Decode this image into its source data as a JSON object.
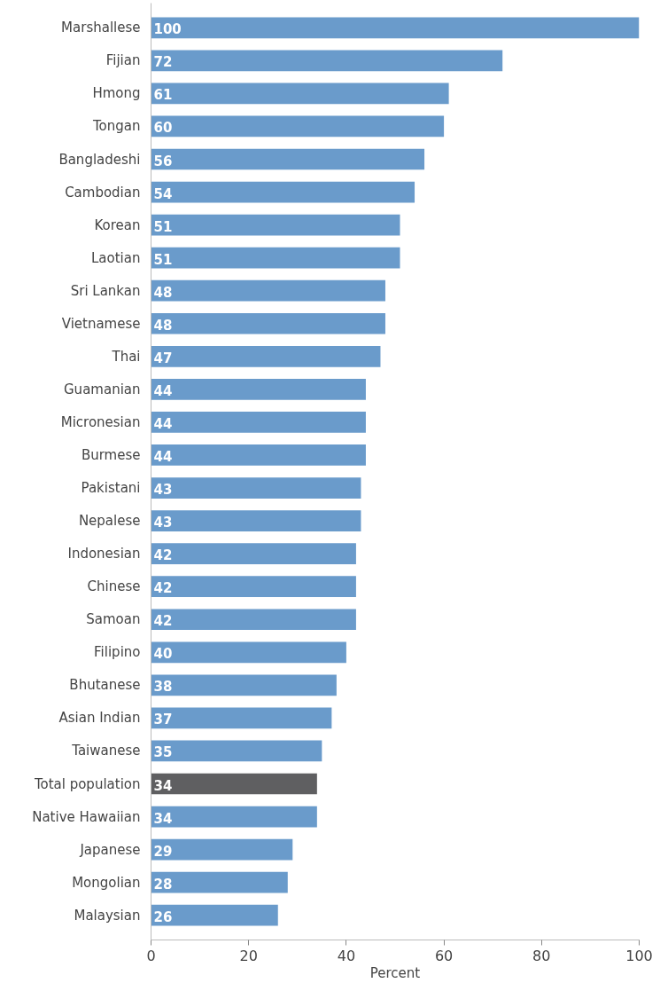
{
  "chart_data": {
    "type": "bar",
    "orientation": "horizontal",
    "xlabel": "Percent",
    "categories": [
      "Marshallese",
      "Fijian",
      "Hmong",
      "Tongan",
      "Bangladeshi",
      "Cambodian",
      "Korean",
      "Laotian",
      "Sri Lankan",
      "Vietnamese",
      "Thai",
      "Guamanian",
      "Micronesian",
      "Burmese",
      "Pakistani",
      "Nepalese",
      "Indonesian",
      "Chinese",
      "Samoan",
      "Filipino",
      "Bhutanese",
      "Asian Indian",
      "Taiwanese",
      "Total population",
      "Native Hawaiian",
      "Japanese",
      "Mongolian",
      "Malaysian"
    ],
    "values": [
      100,
      72,
      61,
      60,
      56,
      54,
      51,
      51,
      48,
      48,
      47,
      44,
      44,
      44,
      43,
      43,
      42,
      42,
      42,
      40,
      38,
      37,
      35,
      34,
      34,
      29,
      28,
      26
    ],
    "colors": [
      "#6a9bcb",
      "#6a9bcb",
      "#6a9bcb",
      "#6a9bcb",
      "#6a9bcb",
      "#6a9bcb",
      "#6a9bcb",
      "#6a9bcb",
      "#6a9bcb",
      "#6a9bcb",
      "#6a9bcb",
      "#6a9bcb",
      "#6a9bcb",
      "#6a9bcb",
      "#6a9bcb",
      "#6a9bcb",
      "#6a9bcb",
      "#6a9bcb",
      "#6a9bcb",
      "#6a9bcb",
      "#6a9bcb",
      "#6a9bcb",
      "#6a9bcb",
      "#5f5f61",
      "#6a9bcb",
      "#6a9bcb",
      "#6a9bcb",
      "#6a9bcb"
    ],
    "xlim": [
      0,
      100
    ],
    "xticks": [
      0,
      20,
      40,
      60,
      80,
      100
    ],
    "data_labels": true,
    "grid": false
  }
}
